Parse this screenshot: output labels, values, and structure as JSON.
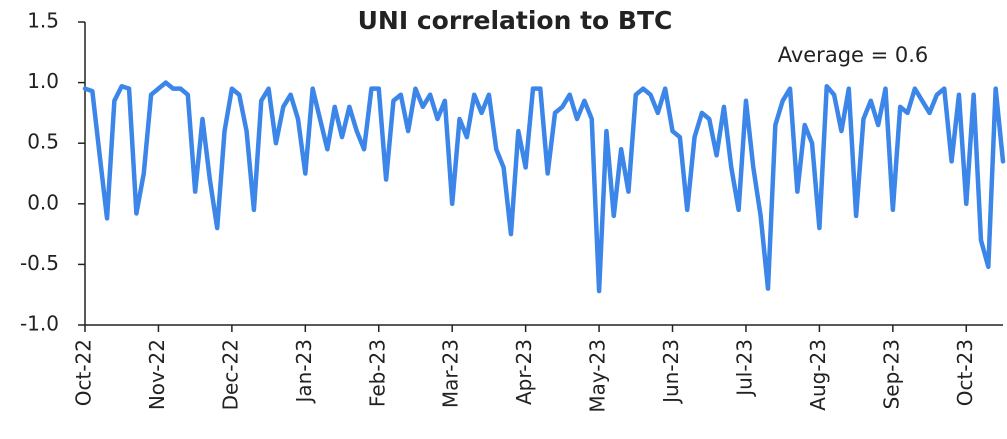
{
  "chart_data": {
    "type": "line",
    "title": "UNI correlation to BTC",
    "annotation": "Average = 0.6",
    "categories": [
      "Oct-22",
      null,
      null,
      null,
      null,
      null,
      null,
      null,
      null,
      null,
      "Nov-22",
      null,
      null,
      null,
      null,
      null,
      null,
      null,
      null,
      null,
      "Dec-22",
      null,
      null,
      null,
      null,
      null,
      null,
      null,
      null,
      null,
      "Jan-23",
      null,
      null,
      null,
      null,
      null,
      null,
      null,
      null,
      null,
      "Feb-23",
      null,
      null,
      null,
      null,
      null,
      null,
      null,
      null,
      null,
      "Mar-23",
      null,
      null,
      null,
      null,
      null,
      null,
      null,
      null,
      null,
      "Apr-23",
      null,
      null,
      null,
      null,
      null,
      null,
      null,
      null,
      null,
      "May-23",
      null,
      null,
      null,
      null,
      null,
      null,
      null,
      null,
      null,
      "Jun-23",
      null,
      null,
      null,
      null,
      null,
      null,
      null,
      null,
      null,
      "Jul-23",
      null,
      null,
      null,
      null,
      null,
      null,
      null,
      null,
      null,
      "Aug-23",
      null,
      null,
      null,
      null,
      null,
      null,
      null,
      null,
      null,
      "Sep-23",
      null,
      null,
      null,
      null,
      null,
      null,
      null,
      null,
      null,
      "Oct-23",
      null,
      null,
      null,
      null,
      null
    ],
    "series": [
      {
        "name": "UNI",
        "color": "#3b86e8",
        "values": [
          0.95,
          0.93,
          0.4,
          -0.12,
          0.85,
          0.97,
          0.95,
          -0.08,
          0.25,
          0.9,
          0.95,
          1.0,
          0.95,
          0.95,
          0.9,
          0.1,
          0.7,
          0.2,
          -0.2,
          0.6,
          0.95,
          0.9,
          0.6,
          -0.05,
          0.85,
          0.95,
          0.5,
          0.8,
          0.9,
          0.7,
          0.25,
          0.95,
          0.7,
          0.45,
          0.8,
          0.55,
          0.8,
          0.6,
          0.45,
          0.95,
          0.95,
          0.2,
          0.85,
          0.9,
          0.6,
          0.95,
          0.8,
          0.9,
          0.7,
          0.85,
          0.0,
          0.7,
          0.55,
          0.9,
          0.75,
          0.9,
          0.45,
          0.3,
          -0.25,
          0.6,
          0.3,
          0.95,
          0.95,
          0.25,
          0.75,
          0.8,
          0.9,
          0.7,
          0.85,
          0.7,
          -0.72,
          0.6,
          -0.1,
          0.45,
          0.1,
          0.9,
          0.95,
          0.9,
          0.75,
          0.95,
          0.6,
          0.55,
          -0.05,
          0.55,
          0.75,
          0.7,
          0.4,
          0.8,
          0.3,
          -0.05,
          0.85,
          0.3,
          -0.1,
          -0.7,
          0.65,
          0.85,
          0.95,
          0.1,
          0.65,
          0.5,
          -0.2,
          0.97,
          0.9,
          0.6,
          0.95,
          -0.1,
          0.7,
          0.85,
          0.65,
          0.95,
          -0.05,
          0.8,
          0.75,
          0.95,
          0.85,
          0.75,
          0.9,
          0.95,
          0.35,
          0.9,
          0.0,
          0.9,
          -0.3,
          -0.52,
          0.95,
          0.35
        ]
      }
    ],
    "ylim": [
      -1.0,
      1.5
    ],
    "yticks": [
      {
        "value": -1,
        "label": "-1.0"
      },
      -0.5,
      {
        "value": 0,
        "label": "0.0"
      },
      0.5,
      {
        "value": 1,
        "label": "1.0"
      },
      1.5
    ]
  }
}
